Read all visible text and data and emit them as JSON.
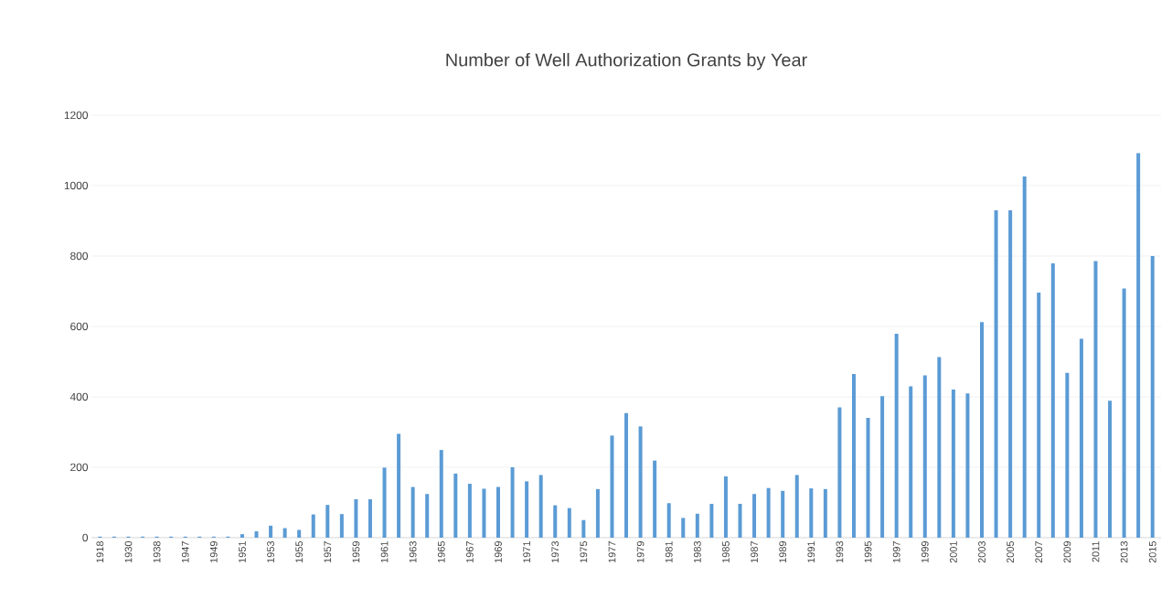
{
  "chart_data": {
    "type": "bar",
    "title": "Number of Well Authorization Grants by Year",
    "categories": [
      "1918",
      null,
      "1930",
      null,
      "1938",
      null,
      "1947",
      null,
      "1949",
      null,
      "1951",
      null,
      "1953",
      null,
      "1955",
      null,
      "1957",
      null,
      "1959",
      null,
      "1961",
      null,
      "1963",
      null,
      "1965",
      null,
      "1967",
      null,
      "1969",
      null,
      "1971",
      null,
      "1973",
      null,
      "1975",
      null,
      "1977",
      null,
      "1979",
      null,
      "1981",
      null,
      "1983",
      null,
      "1985",
      null,
      "1987",
      null,
      "1989",
      null,
      "1991",
      null,
      "1993",
      null,
      "1995",
      null,
      "1997",
      null,
      "1999",
      null,
      "2001",
      null,
      "2003",
      null,
      "2005",
      null,
      "2007",
      null,
      "2009",
      null,
      "2011",
      null,
      "2013",
      null,
      "2015"
    ],
    "values": [
      3,
      3,
      3,
      3,
      3,
      3,
      3,
      3,
      3,
      3,
      10,
      18,
      34,
      27,
      22,
      66,
      93,
      67,
      109,
      109,
      199,
      295,
      144,
      124,
      249,
      182,
      153,
      139,
      144,
      200,
      160,
      178,
      92,
      84,
      50,
      138,
      290,
      354,
      316,
      219,
      98,
      56,
      68,
      96,
      174,
      96,
      124,
      141,
      133,
      178,
      140,
      138,
      370,
      465,
      340,
      402,
      579,
      430,
      461,
      513,
      421,
      410,
      612,
      930,
      930,
      1026,
      696,
      779,
      468,
      565,
      786,
      389,
      708,
      1092,
      800
    ],
    "color": "#5b9bd5",
    "ylim": [
      0,
      1200
    ],
    "yticks": [
      0,
      200,
      400,
      600,
      800,
      1000,
      1200
    ],
    "grid": "y"
  }
}
